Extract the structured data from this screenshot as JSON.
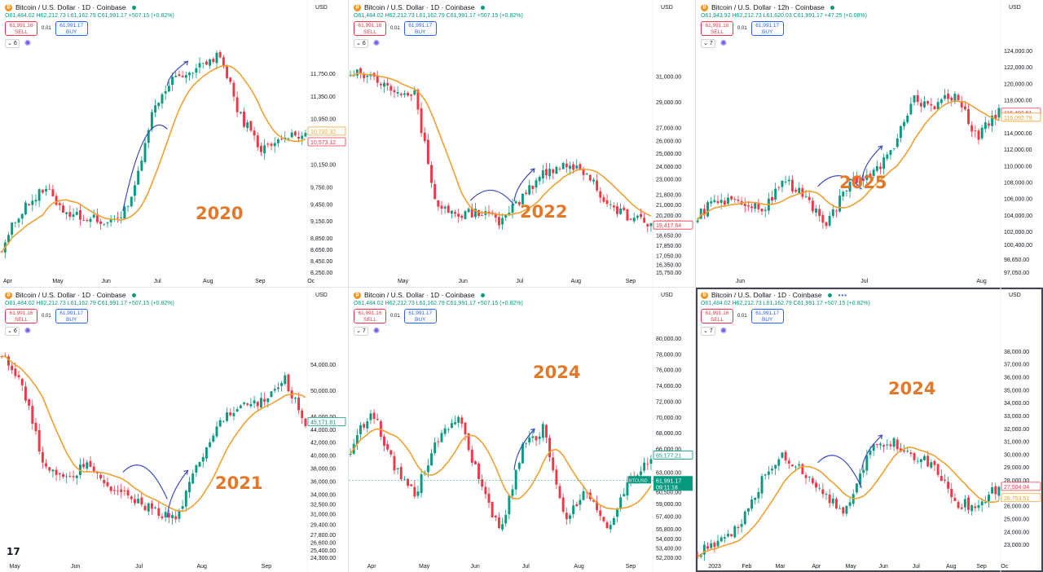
{
  "legend_label": "Bitcoin / U.S. Dollar · 1D · Coinbase",
  "legend_label_12h": "Bitcoin / U.S. Dollar · 12h · Coinbase",
  "ohlc_default": "O61,484.02 H62,212.73 L61,162.79 C61,991.17 +507.15 (+0.82%)",
  "ohlc_2025": "O61,943.92 H62,212.73 L61,620.03 C61,991.17 +47.25 (+0.08%)",
  "sell_price": "61,991.16",
  "sell_label": "SELL",
  "buy_price": "61,991.17",
  "buy_label": "BUY",
  "spread": "0.01",
  "currency": "USD",
  "colors": {
    "up": "#089981",
    "down": "#f23645",
    "ma": "#f0a030",
    "annotation": "#3b4bc4",
    "year_label": "#e2792a"
  },
  "icons": [
    "bitcoin-icon",
    "live-dot-icon",
    "chevron-down-icon",
    "settings-icon",
    "tradingview-logo-icon"
  ],
  "chart_data": [
    {
      "type": "candlestick",
      "year_label": "2020",
      "indicator_count": "6",
      "x_tick_labels": [
        "Apr",
        "May",
        "Jun",
        "Jul",
        "Aug",
        "Sep",
        "Oc"
      ],
      "y_tick_labels": [
        "11,750.00",
        "11,350.00",
        "10,950.00",
        "10,150.00",
        "9,750.00",
        "9,450.00",
        "9,150.00",
        "8,850.00",
        "8,650.00",
        "8,450.00",
        "8,250.00"
      ],
      "ylim": [
        8250,
        12150
      ],
      "price_labels": [
        {
          "text": "10,732.32",
          "color": "#f0a030"
        },
        {
          "text": "10,573.12",
          "color": "#f23645"
        }
      ],
      "key_points": [
        8700,
        9400,
        9700,
        9300,
        9200,
        9100,
        9500,
        11100,
        11700,
        11800,
        12100,
        11000,
        10400,
        10600,
        10700
      ],
      "annotations": [
        "arc",
        "arrow"
      ]
    },
    {
      "type": "candlestick",
      "year_label": "2022",
      "indicator_count": "6",
      "x_tick_labels": [
        "May",
        "Jun",
        "Jul",
        "Aug",
        "Sep"
      ],
      "y_tick_labels": [
        "31,000.00",
        "29,000.00",
        "27,000.00",
        "26,000.00",
        "25,000.00",
        "24,000.00",
        "23,000.00",
        "21,800.00",
        "21,000.00",
        "20,200.00",
        "19,650.00",
        "18,650.00",
        "17,850.00",
        "17,050.00",
        "16,350.00",
        "15,750.00"
      ],
      "ylim": [
        15750,
        33000
      ],
      "price_labels": [
        {
          "text": "19,417.64",
          "color": "#f23645"
        }
      ],
      "key_points": [
        31500,
        31000,
        30200,
        29500,
        21000,
        20200,
        20500,
        19600,
        21500,
        23500,
        24200,
        23500,
        21000,
        20000,
        19400
      ],
      "annotations": [
        "arc",
        "arrow"
      ]
    },
    {
      "type": "candlestick",
      "year_label": "2025",
      "indicator_count": "7",
      "x_tick_labels": [
        "Jun",
        "Jul",
        "Aug"
      ],
      "y_tick_labels": [
        "124,000.00",
        "122,000.00",
        "120,000.00",
        "118,000.00",
        "114,000.00",
        "112,000.00",
        "110,000.00",
        "108,000.00",
        "106,000.00",
        "104,000.00",
        "102,000.00",
        "100,400.00",
        "98,650.00",
        "97,050.00"
      ],
      "ylim": [
        97050,
        124000
      ],
      "price_labels": [
        {
          "text": "116,492.51",
          "color": "#f23645"
        },
        {
          "text": "116,092.79",
          "color": "#f0a030"
        }
      ],
      "key_points": [
        104000,
        106000,
        105500,
        104500,
        108500,
        106000,
        103000,
        107500,
        109000,
        111500,
        118000,
        117500,
        118500,
        113500,
        116500
      ],
      "annotations": [
        "arc",
        "arrow"
      ]
    },
    {
      "type": "candlestick",
      "year_label": "2021",
      "indicator_count": "6",
      "x_tick_labels": [
        "May",
        "Jun",
        "Jul",
        "Aug",
        "Sep"
      ],
      "y_tick_labels": [
        "54,000.00",
        "50,000.00",
        "46,000.00",
        "44,000.00",
        "42,000.00",
        "40,000.00",
        "38,000.00",
        "36,000.00",
        "34,000.00",
        "32,500.00",
        "31,000.00",
        "29,400.00",
        "27,800.00",
        "26,600.00",
        "25,400.00",
        "24,300.00"
      ],
      "ylim": [
        24300,
        58000
      ],
      "price_labels": [
        {
          "text": "45,171.81",
          "color": "#089981"
        }
      ],
      "key_points": [
        56000,
        50000,
        38000,
        36000,
        39000,
        35000,
        33500,
        31500,
        29900,
        38000,
        45000,
        47500,
        48000,
        52000,
        45200
      ],
      "annotations": [
        "arc",
        "arrow"
      ]
    },
    {
      "type": "candlestick",
      "year_label": "2024",
      "indicator_count": "7",
      "x_tick_labels": [
        "Apr",
        "May",
        "Jun",
        "Jul",
        "Aug",
        "Sep"
      ],
      "y_tick_labels": [
        "80,000.00",
        "78,000.00",
        "76,000.00",
        "74,000.00",
        "72,000.00",
        "70,000.00",
        "68,000.00",
        "66,000.00",
        "63,000.00",
        "60,500.00",
        "59,000.00",
        "57,400.00",
        "55,800.00",
        "54,600.00",
        "53,400.00",
        "52,200.00"
      ],
      "ylim": [
        52200,
        80000
      ],
      "price_labels": [
        {
          "text": "65,177.21",
          "color": "#089981"
        }
      ],
      "current_price": {
        "symbol": "BTCUSD",
        "price": "61,991.17",
        "countdown": "09:11:18"
      },
      "key_points": [
        66000,
        71000,
        64000,
        60000,
        67000,
        70000,
        62000,
        55000,
        66000,
        68500,
        57000,
        61000,
        56000,
        62000,
        65000
      ],
      "annotations": [
        "arrow"
      ]
    },
    {
      "type": "candlestick",
      "year_label": "2024",
      "indicator_count": "7",
      "x_tick_labels": [
        "2023",
        "Feb",
        "Mar",
        "Apr",
        "May",
        "Jun",
        "Jul",
        "Aug",
        "Sep",
        "Oc"
      ],
      "y_tick_labels": [
        "38,000.00",
        "37,000.00",
        "36,000.00",
        "35,000.00",
        "34,000.00",
        "33,000.00",
        "32,000.00",
        "31,000.00",
        "30,000.00",
        "29,000.00",
        "28,000.00",
        "26,000.00",
        "25,000.00",
        "24,000.00",
        "23,000.00"
      ],
      "ylim": [
        22000,
        39000
      ],
      "price_labels": [
        {
          "text": "27,504.04",
          "color": "#f23645"
        },
        {
          "text": "26,753.51",
          "color": "#f0a030"
        }
      ],
      "key_points": [
        22500,
        23000,
        24500,
        28000,
        30000,
        28500,
        26800,
        25500,
        30500,
        31000,
        30000,
        29000,
        26200,
        26000,
        27500
      ],
      "annotations": [
        "line",
        "arrow"
      ]
    }
  ]
}
